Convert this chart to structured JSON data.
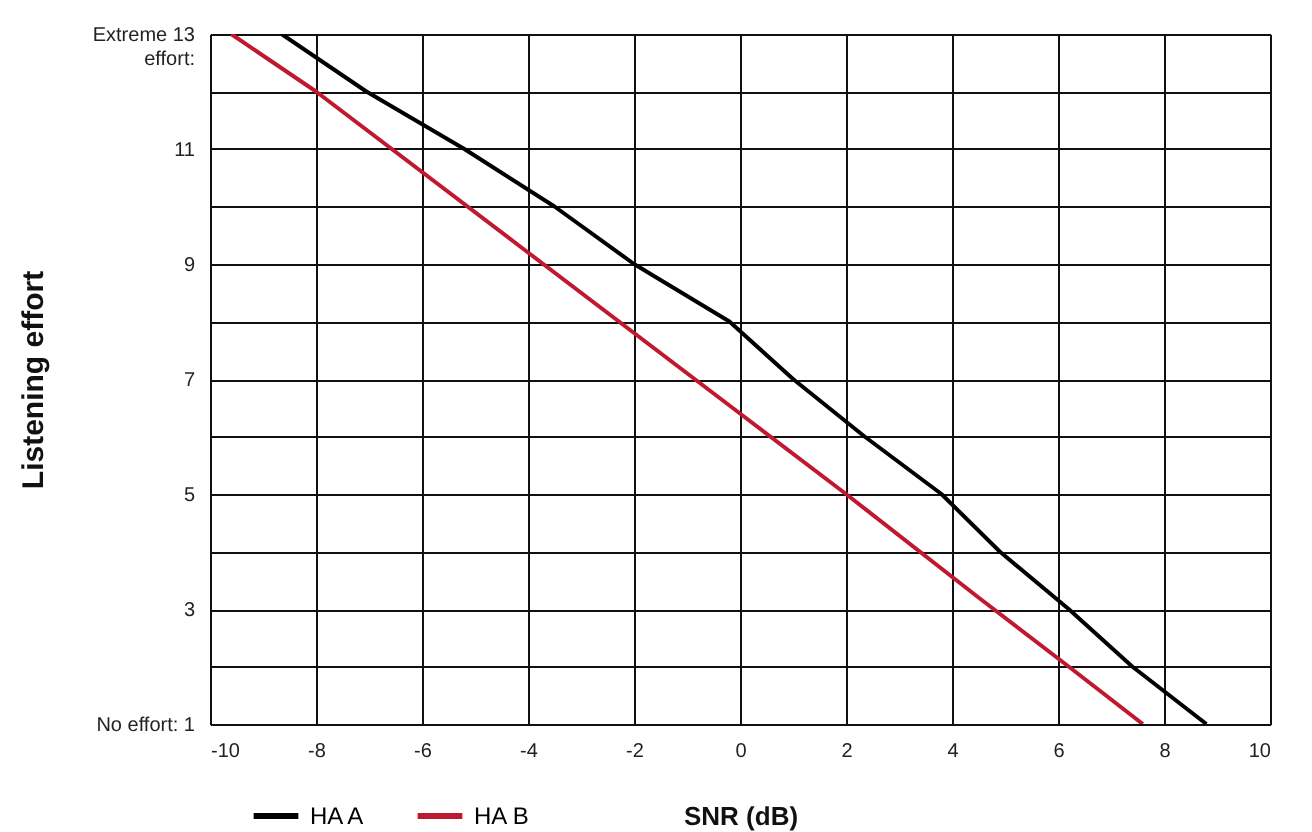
{
  "chart_data": {
    "type": "line",
    "xlabel": "SNR (dB)",
    "ylabel": "Listening effort",
    "xlim": [
      -10,
      10
    ],
    "xticks": [
      -10,
      -8,
      -6,
      -4,
      -2,
      0,
      2,
      4,
      6,
      8,
      10
    ],
    "ylim": [
      1,
      13
    ],
    "yticks": [
      {
        "value": 1,
        "label": "No effort: 1"
      },
      {
        "value": 2,
        "label": null
      },
      3,
      {
        "value": 4,
        "label": null
      },
      5,
      {
        "value": 6,
        "label": null
      },
      7,
      {
        "value": 8,
        "label": null
      },
      9,
      {
        "value": 10,
        "label": null
      },
      11,
      {
        "value": 12,
        "label": null
      },
      {
        "value": 13,
        "label": "Extreme 13\neffort:"
      }
    ],
    "grid": true,
    "legend": "bottom left",
    "marker": "none",
    "line_style": "solid",
    "series": [
      {
        "name": "HA A",
        "color": "#000000",
        "x": [
          -8.65,
          -7.05,
          -5.2,
          -3.5,
          -2.0,
          -0.2,
          1.0,
          2.35,
          3.8,
          4.9,
          6.2,
          7.4,
          8.8
        ],
        "values": [
          13,
          12,
          11,
          10,
          9,
          8,
          7,
          6,
          5,
          4,
          3,
          2,
          1
        ]
      },
      {
        "name": "HA B",
        "color": "#c0182f",
        "x": [
          -9.6,
          -8.0,
          -4.0,
          0.0,
          2.0,
          4.5,
          6.2,
          7.6
        ],
        "values": [
          13,
          12,
          9.2,
          6.4,
          5,
          3.2,
          2,
          1
        ]
      }
    ]
  }
}
